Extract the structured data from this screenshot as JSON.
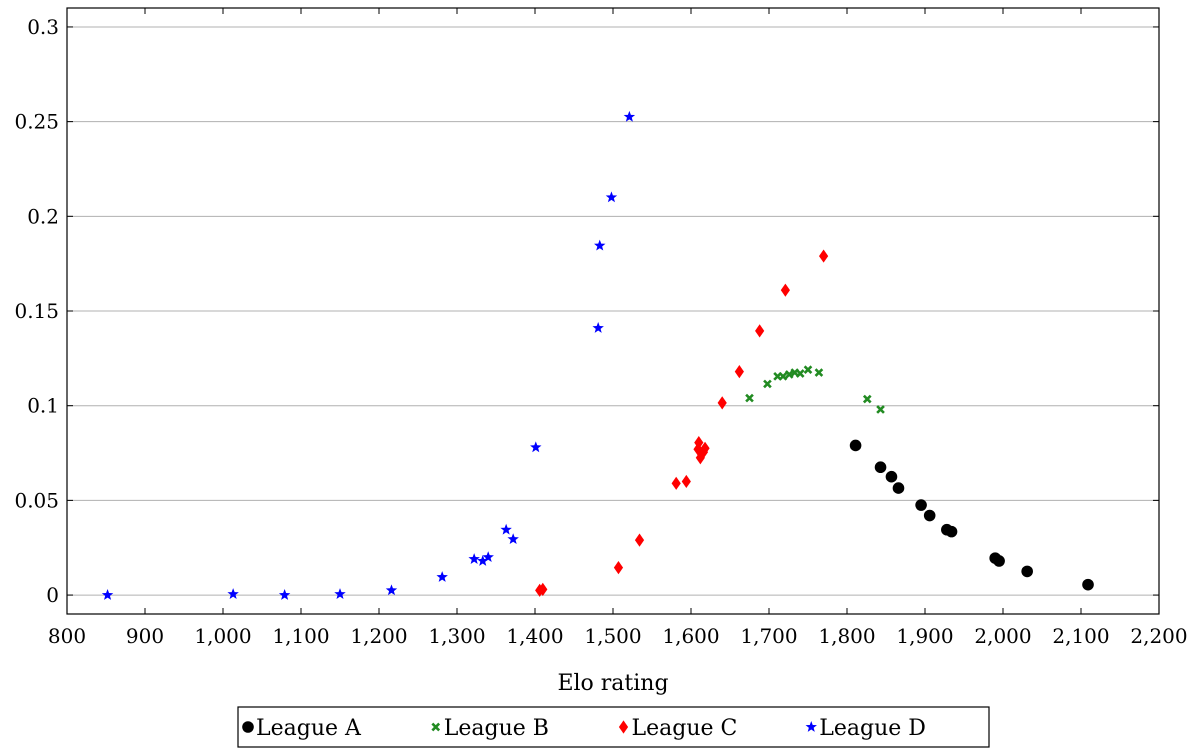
{
  "chart_data": {
    "type": "scatter",
    "title": "",
    "xlabel": "Elo rating",
    "ylabel": "",
    "xlim": [
      800,
      2200
    ],
    "ylim": [
      -0.01,
      0.31
    ],
    "x_ticks": [
      800,
      900,
      1000,
      1100,
      1200,
      1300,
      1400,
      1500,
      1600,
      1700,
      1800,
      1900,
      2000,
      2100,
      2200
    ],
    "x_tick_labels": [
      "800",
      "900",
      "1,000",
      "1,100",
      "1,200",
      "1,300",
      "1,400",
      "1,500",
      "1,600",
      "1,700",
      "1,800",
      "1,900",
      "2,000",
      "2,100",
      "2,200"
    ],
    "y_ticks": [
      0,
      0.05,
      0.1,
      0.15,
      0.2,
      0.25,
      0.3
    ],
    "y_tick_labels": [
      "0",
      "0.05",
      "0.1",
      "0.15",
      "0.2",
      "0.25",
      "0.3"
    ],
    "grid": "horizontal major",
    "legend_position": "bottom",
    "series": [
      {
        "name": "League A",
        "marker": "circle",
        "color": "#000000",
        "points": [
          [
            1811,
            0.079
          ],
          [
            1843,
            0.0675
          ],
          [
            1857,
            0.0625
          ],
          [
            1866,
            0.0565
          ],
          [
            1895,
            0.0475
          ],
          [
            1906,
            0.042
          ],
          [
            1928,
            0.0345
          ],
          [
            1934,
            0.0335
          ],
          [
            1990,
            0.0195
          ],
          [
            1995,
            0.018
          ],
          [
            2031,
            0.0125
          ],
          [
            2109,
            0.0055
          ]
        ]
      },
      {
        "name": "League B",
        "marker": "x",
        "color": "#228b22",
        "points": [
          [
            1675,
            0.104
          ],
          [
            1698,
            0.1115
          ],
          [
            1711,
            0.1155
          ],
          [
            1718,
            0.1155
          ],
          [
            1726,
            0.1165
          ],
          [
            1733,
            0.1175
          ],
          [
            1740,
            0.117
          ],
          [
            1750,
            0.119
          ],
          [
            1764,
            0.1175
          ],
          [
            1826,
            0.1035
          ],
          [
            1843,
            0.098
          ]
        ]
      },
      {
        "name": "League C",
        "marker": "diamond",
        "color": "#ff0000",
        "points": [
          [
            1406,
            0.0025
          ],
          [
            1410,
            0.003
          ],
          [
            1507,
            0.0145
          ],
          [
            1534,
            0.029
          ],
          [
            1581,
            0.059
          ],
          [
            1594,
            0.06
          ],
          [
            1609,
            0.077
          ],
          [
            1610,
            0.0805
          ],
          [
            1612,
            0.0725
          ],
          [
            1616,
            0.0755
          ],
          [
            1618,
            0.0775
          ],
          [
            1640,
            0.1015
          ],
          [
            1662,
            0.118
          ],
          [
            1688,
            0.1395
          ],
          [
            1721,
            0.161
          ],
          [
            1770,
            0.179
          ]
        ]
      },
      {
        "name": "League D",
        "marker": "star",
        "color": "#0000ff",
        "points": [
          [
            852,
            0.0
          ],
          [
            1013,
            0.0005
          ],
          [
            1079,
            0.0
          ],
          [
            1150,
            0.0005
          ],
          [
            1216,
            0.0025
          ],
          [
            1281,
            0.0095
          ],
          [
            1322,
            0.019
          ],
          [
            1333,
            0.018
          ],
          [
            1340,
            0.02
          ],
          [
            1363,
            0.0345
          ],
          [
            1372,
            0.0295
          ],
          [
            1401,
            0.078
          ],
          [
            1481,
            0.141
          ],
          [
            1483,
            0.1845
          ],
          [
            1498,
            0.21
          ],
          [
            1521,
            0.2525
          ]
        ]
      }
    ]
  }
}
